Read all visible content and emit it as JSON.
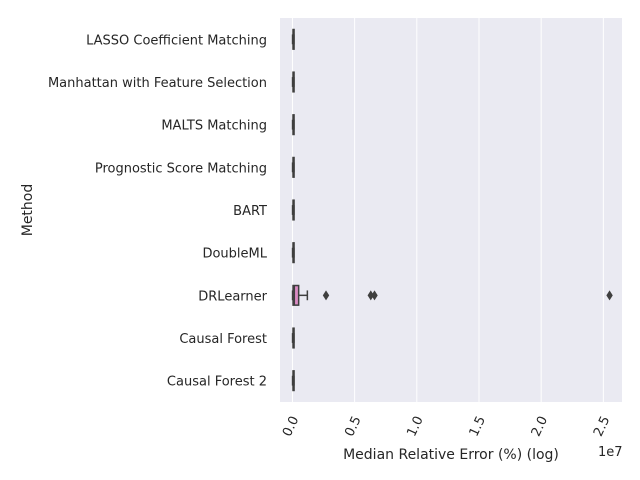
{
  "chart_data": {
    "type": "boxplot",
    "orientation": "horizontal",
    "xlabel": "Median Relative Error (%) (log)",
    "ylabel": "Method",
    "x_offset_text": "1e7",
    "xlim": [
      -1000000,
      26500000
    ],
    "x_ticks": [
      0,
      5000000,
      10000000,
      15000000,
      20000000,
      25000000
    ],
    "x_tick_labels": [
      "0.0",
      "0.5",
      "1.0",
      "1.5",
      "2.0",
      "2.5"
    ],
    "grid": true,
    "background": "#eaeaf2",
    "categories": [
      "LASSO Coefficient Matching",
      "Manhattan with Feature Selection",
      "MALTS Matching",
      "Prognostic Score Matching",
      "BART",
      "DoubleML",
      "DRLearner",
      "Causal Forest",
      "Causal Forest 2"
    ],
    "boxes": [
      {
        "q1": 50000,
        "median": 60000,
        "q3": 80000,
        "whisker_low": 10000,
        "whisker_high": 120000,
        "outliers": [],
        "color": "#4c72b0"
      },
      {
        "q1": 50000,
        "median": 60000,
        "q3": 80000,
        "whisker_low": 10000,
        "whisker_high": 120000,
        "outliers": [],
        "color": "#dd8452"
      },
      {
        "q1": 50000,
        "median": 60000,
        "q3": 80000,
        "whisker_low": 10000,
        "whisker_high": 120000,
        "outliers": [],
        "color": "#55a868"
      },
      {
        "q1": 50000,
        "median": 60000,
        "q3": 80000,
        "whisker_low": 10000,
        "whisker_high": 120000,
        "outliers": [],
        "color": "#c44e52"
      },
      {
        "q1": 50000,
        "median": 60000,
        "q3": 80000,
        "whisker_low": 10000,
        "whisker_high": 120000,
        "outliers": [],
        "color": "#8172b3"
      },
      {
        "q1": 50000,
        "median": 60000,
        "q3": 80000,
        "whisker_low": 10000,
        "whisker_high": 120000,
        "outliers": [],
        "color": "#937860"
      },
      {
        "q1": 50000,
        "median": 150000,
        "q3": 500000,
        "whisker_low": 10000,
        "whisker_high": 1200000,
        "outliers": [
          2700000,
          6300000,
          6600000,
          25500000
        ],
        "color": "#da8bc3"
      },
      {
        "q1": 50000,
        "median": 60000,
        "q3": 80000,
        "whisker_low": 10000,
        "whisker_high": 120000,
        "outliers": [],
        "color": "#8c8c8c"
      },
      {
        "q1": 50000,
        "median": 60000,
        "q3": 80000,
        "whisker_low": 10000,
        "whisker_high": 120000,
        "outliers": [],
        "color": "#ccb974"
      }
    ],
    "line_color": "#3f3f3f"
  }
}
